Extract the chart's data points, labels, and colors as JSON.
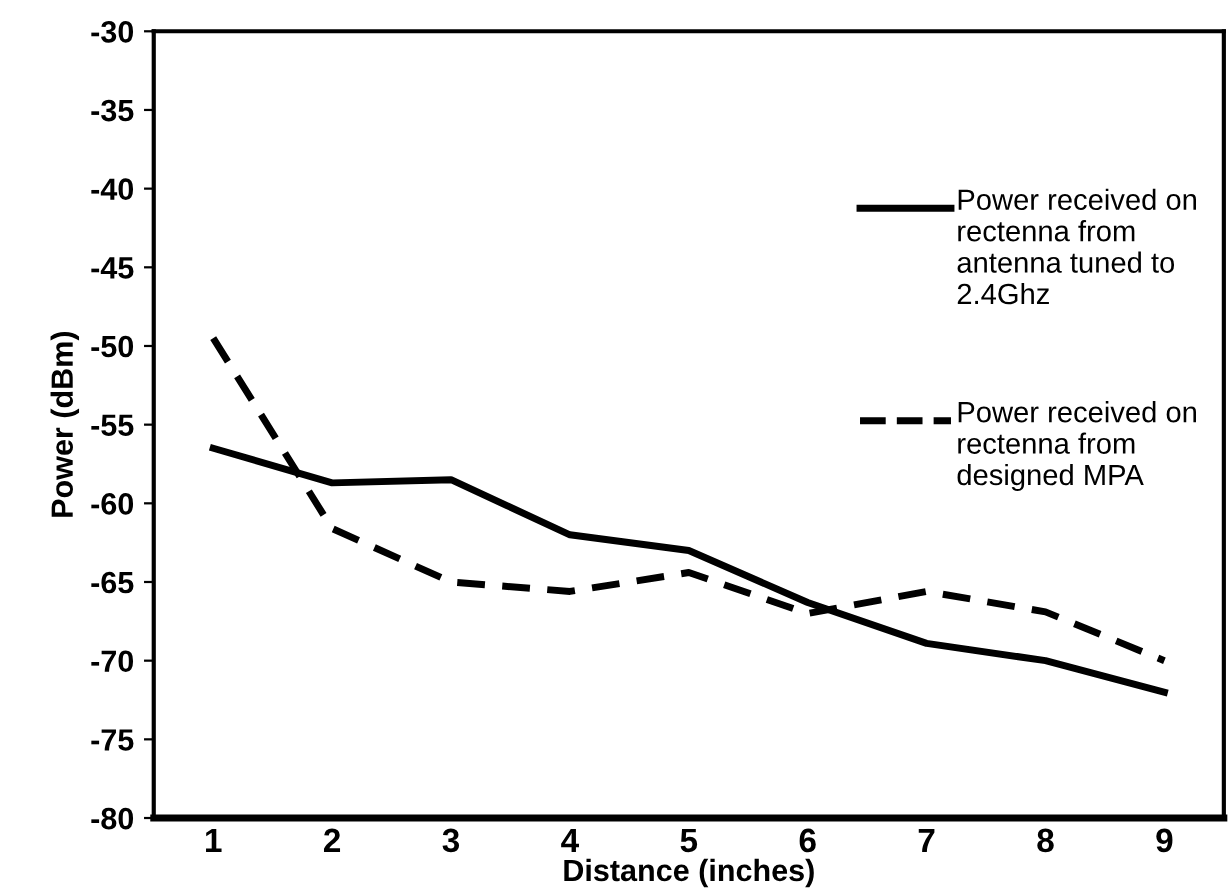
{
  "chart_data": {
    "type": "line",
    "xlabel": "Distance (inches)",
    "ylabel": "Power (dBm)",
    "categories": [
      "1",
      "2",
      "3",
      "4",
      "5",
      "6",
      "7",
      "8",
      "9"
    ],
    "series": [
      {
        "name": "Power received on rectenna from antenna tuned to 2.4Ghz",
        "color": "#000000",
        "line_style": "solid",
        "values": [
          -56.5,
          -58.7,
          -58.5,
          -62,
          -63,
          -66.3,
          -68.9,
          -70,
          -72
        ]
      },
      {
        "name": "Power received on rectenna from designed MPA",
        "color": "#000000",
        "line_style": "dashed",
        "values": [
          -49.5,
          -61.6,
          -65,
          -65.6,
          -64.4,
          -67,
          -65.6,
          -66.9,
          -70
        ]
      }
    ],
    "ylim": [
      -80,
      -30
    ],
    "yticks": [
      -80,
      -75,
      -70,
      -65,
      -60,
      -55,
      -50,
      -45,
      -40,
      -35,
      -30
    ],
    "grid": false,
    "legend": "top right"
  }
}
